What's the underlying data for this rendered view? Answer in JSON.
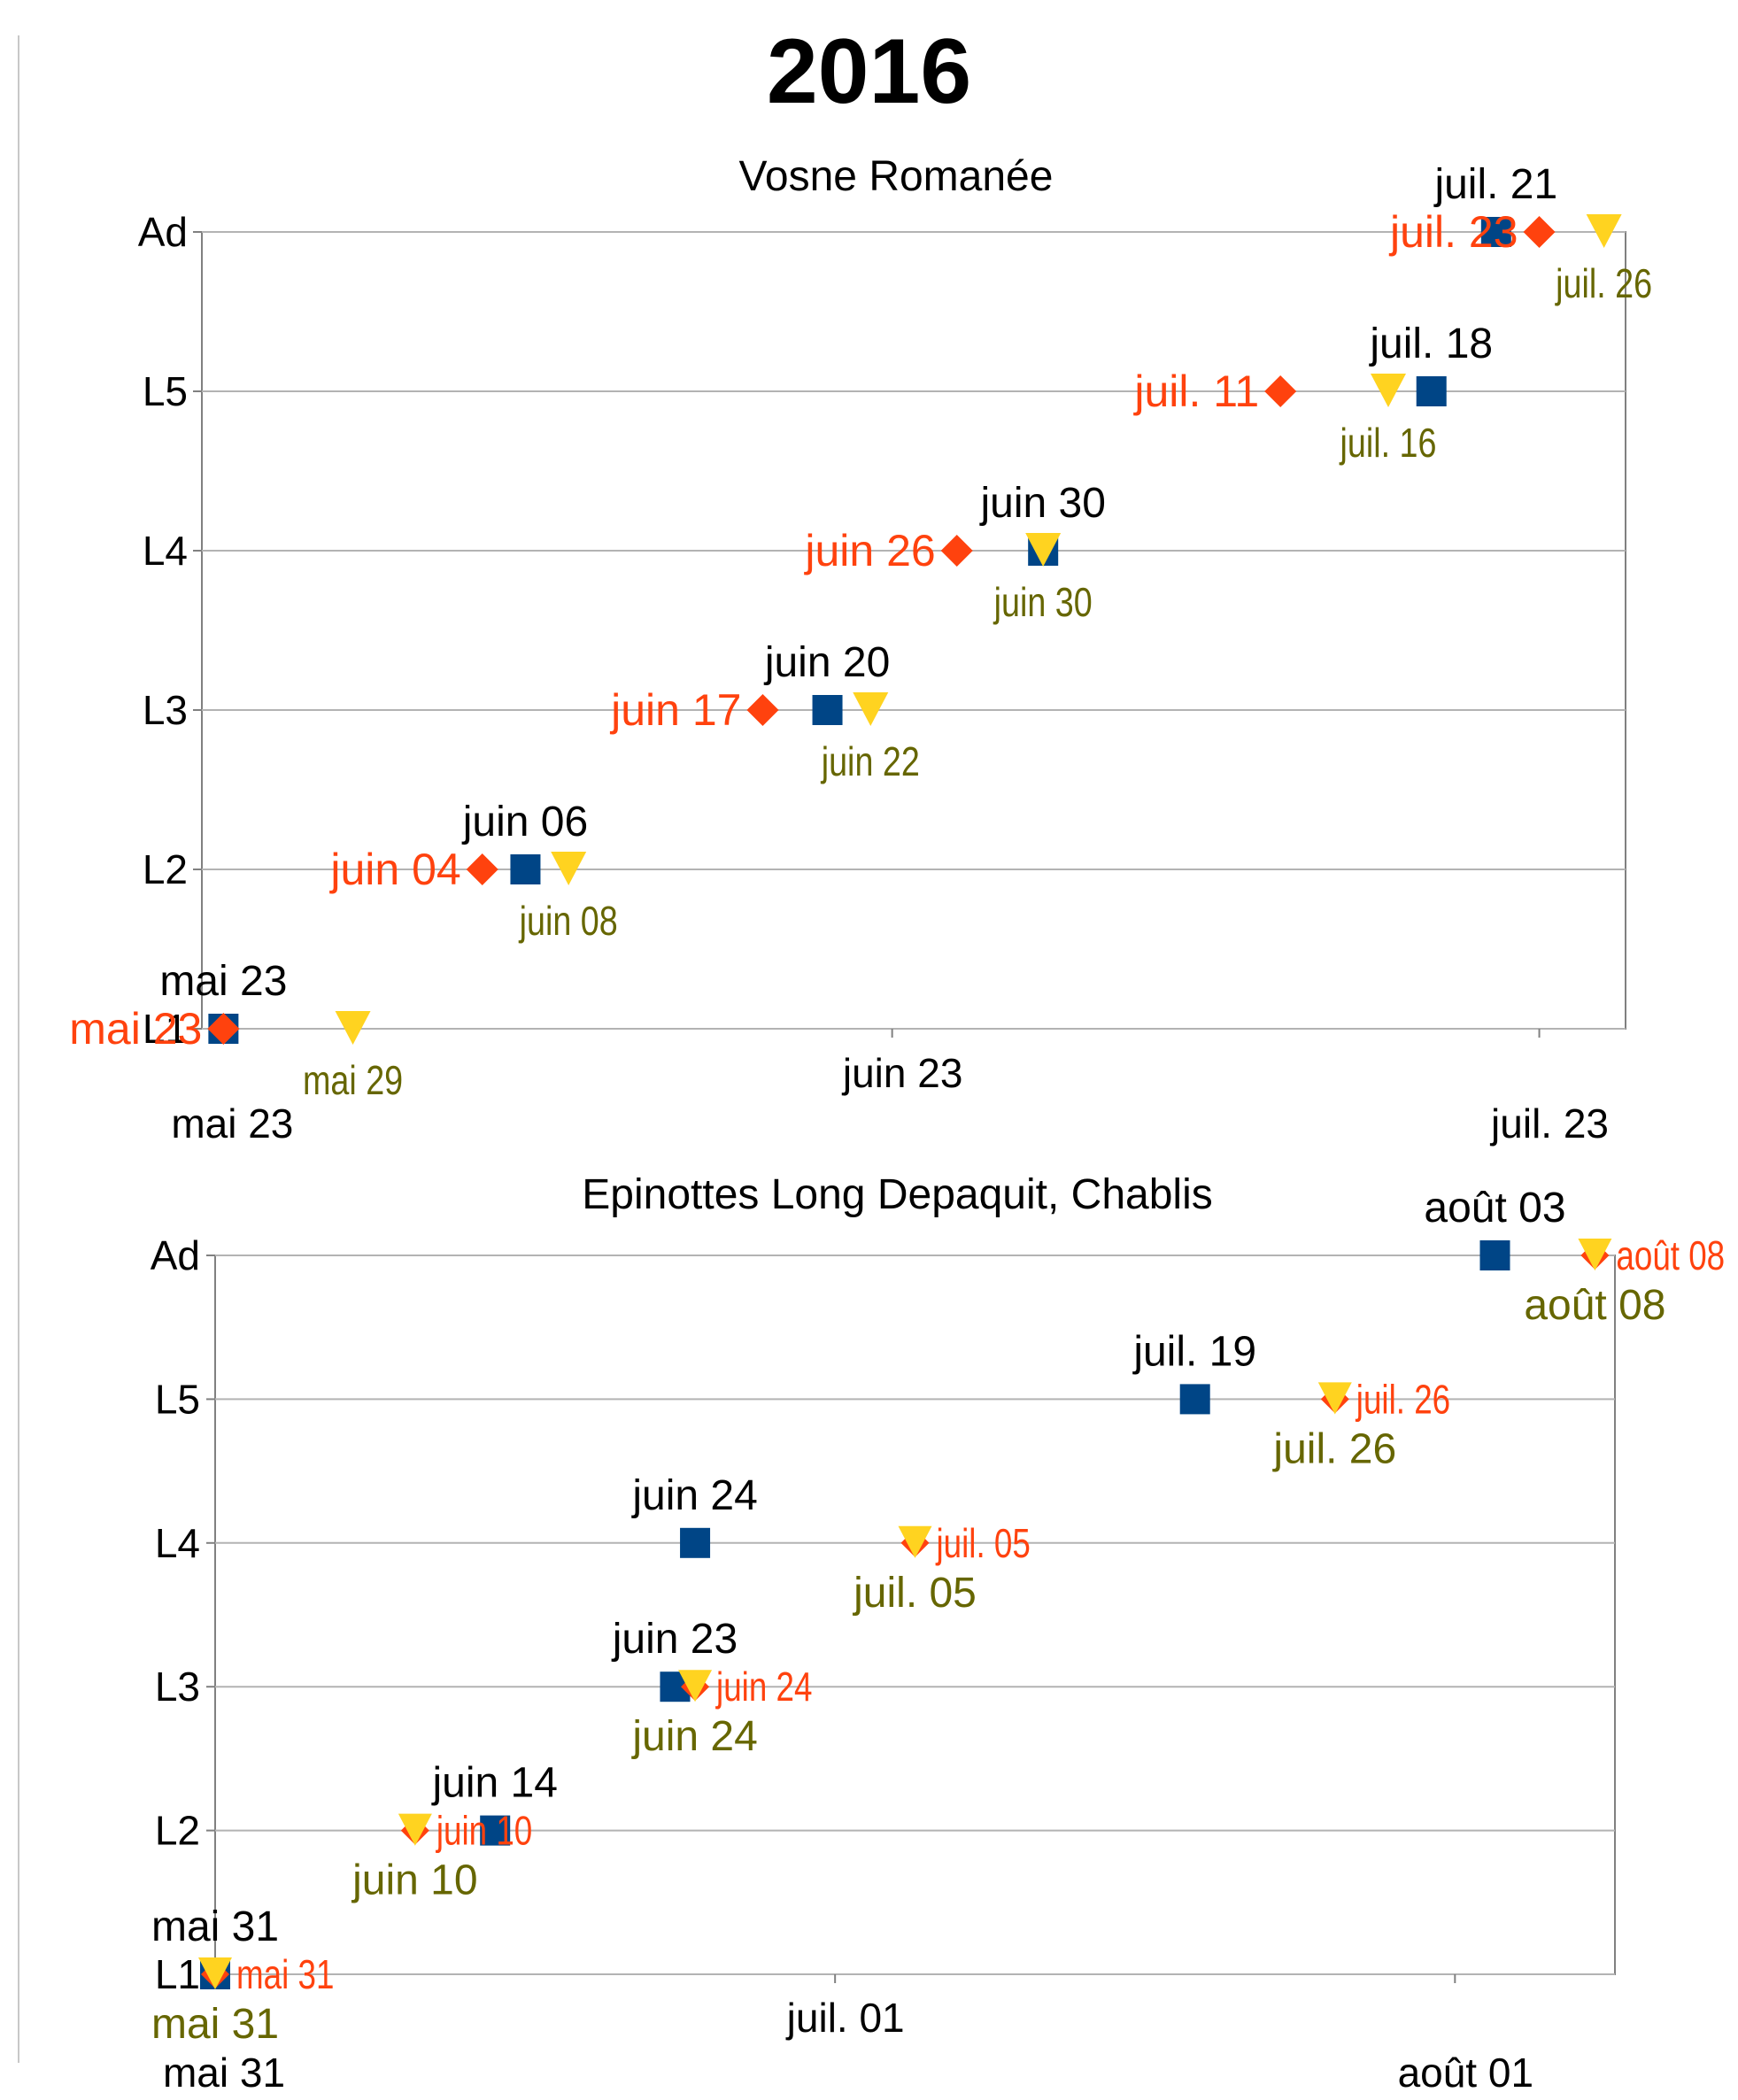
{
  "page_title": "2016",
  "colors": {
    "square": "#004586",
    "diamond": "#ff420e",
    "triangle": "#ffd320",
    "triangle_label": "#666600",
    "grid": "#b3b3b3",
    "axis": "#808080"
  },
  "chart_data": [
    {
      "type": "scatter",
      "title": "Vosne Romanée",
      "xlabel": "",
      "ylabel": "",
      "y_categories": [
        "L1",
        "L2",
        "L3",
        "L4",
        "L5",
        "Ad"
      ],
      "x_ticks": [
        {
          "date": "2016-05-23",
          "label": "mai 23"
        },
        {
          "date": "2016-06-23",
          "label": "juin 23"
        },
        {
          "date": "2016-07-23",
          "label": "juil. 23"
        }
      ],
      "xlim": [
        "2016-05-22",
        "2016-07-27"
      ],
      "grid": true,
      "series": [
        {
          "marker": "square",
          "points": [
            {
              "x": "2016-05-23",
              "y": "L1",
              "label": "mai 23"
            },
            {
              "x": "2016-06-06",
              "y": "L2",
              "label": "juin 06"
            },
            {
              "x": "2016-06-20",
              "y": "L3",
              "label": "juin 20"
            },
            {
              "x": "2016-06-30",
              "y": "L4",
              "label": "juin 30"
            },
            {
              "x": "2016-07-18",
              "y": "L5",
              "label": "juil. 18"
            },
            {
              "x": "2016-07-21",
              "y": "Ad",
              "label": "juil. 21"
            }
          ]
        },
        {
          "marker": "diamond",
          "points": [
            {
              "x": "2016-05-23",
              "y": "L1",
              "label": "mai 23"
            },
            {
              "x": "2016-06-04",
              "y": "L2",
              "label": "juin 04"
            },
            {
              "x": "2016-06-17",
              "y": "L3",
              "label": "juin 17"
            },
            {
              "x": "2016-06-26",
              "y": "L4",
              "label": "juin 26"
            },
            {
              "x": "2016-07-11",
              "y": "L5",
              "label": "juil. 11"
            },
            {
              "x": "2016-07-23",
              "y": "Ad",
              "label": "juil. 23"
            }
          ]
        },
        {
          "marker": "triangle",
          "points": [
            {
              "x": "2016-05-29",
              "y": "L1",
              "label": "mai 29"
            },
            {
              "x": "2016-06-08",
              "y": "L2",
              "label": "juin 08"
            },
            {
              "x": "2016-06-22",
              "y": "L3",
              "label": "juin 22"
            },
            {
              "x": "2016-06-30",
              "y": "L4",
              "label": "juin 30"
            },
            {
              "x": "2016-07-16",
              "y": "L5",
              "label": "juil. 16"
            },
            {
              "x": "2016-07-26",
              "y": "Ad",
              "label": "juil. 26"
            }
          ]
        }
      ]
    },
    {
      "type": "scatter",
      "title": "Epinottes Long Depaquit, Chablis",
      "xlabel": "",
      "ylabel": "",
      "y_categories": [
        "L1",
        "L2",
        "L3",
        "L4",
        "L5",
        "Ad"
      ],
      "x_ticks": [
        {
          "date": "2016-05-31",
          "label": "mai 31"
        },
        {
          "date": "2016-07-01",
          "label": "juil. 01"
        },
        {
          "date": "2016-08-01",
          "label": "août 01"
        }
      ],
      "xlim": [
        "2016-05-31",
        "2016-08-09"
      ],
      "grid": true,
      "series": [
        {
          "marker": "square",
          "points": [
            {
              "x": "2016-05-31",
              "y": "L1",
              "label": "mai 31"
            },
            {
              "x": "2016-06-14",
              "y": "L2",
              "label": "juin 14"
            },
            {
              "x": "2016-06-23",
              "y": "L3",
              "label": "juin 23"
            },
            {
              "x": "2016-06-24",
              "y": "L4",
              "label": "juin 24"
            },
            {
              "x": "2016-07-19",
              "y": "L5",
              "label": "juil. 19"
            },
            {
              "x": "2016-08-03",
              "y": "Ad",
              "label": "août 03"
            }
          ]
        },
        {
          "marker": "diamond",
          "points": [
            {
              "x": "2016-05-31",
              "y": "L1",
              "label": "mai 31"
            },
            {
              "x": "2016-06-10",
              "y": "L2",
              "label": "juin 10"
            },
            {
              "x": "2016-06-24",
              "y": "L3",
              "label": "juin 24"
            },
            {
              "x": "2016-07-05",
              "y": "L4",
              "label": "juil. 05"
            },
            {
              "x": "2016-07-26",
              "y": "L5",
              "label": "juil. 26"
            },
            {
              "x": "2016-08-08",
              "y": "Ad",
              "label": "août 08"
            }
          ]
        },
        {
          "marker": "triangle",
          "points": [
            {
              "x": "2016-05-31",
              "y": "L1",
              "label": "mai 31"
            },
            {
              "x": "2016-06-10",
              "y": "L2",
              "label": "juin 10"
            },
            {
              "x": "2016-06-24",
              "y": "L3",
              "label": "juin 24"
            },
            {
              "x": "2016-07-05",
              "y": "L4",
              "label": "juil. 05"
            },
            {
              "x": "2016-07-26",
              "y": "L5",
              "label": "juil. 26"
            },
            {
              "x": "2016-08-08",
              "y": "Ad",
              "label": "août 08"
            }
          ]
        }
      ]
    }
  ]
}
